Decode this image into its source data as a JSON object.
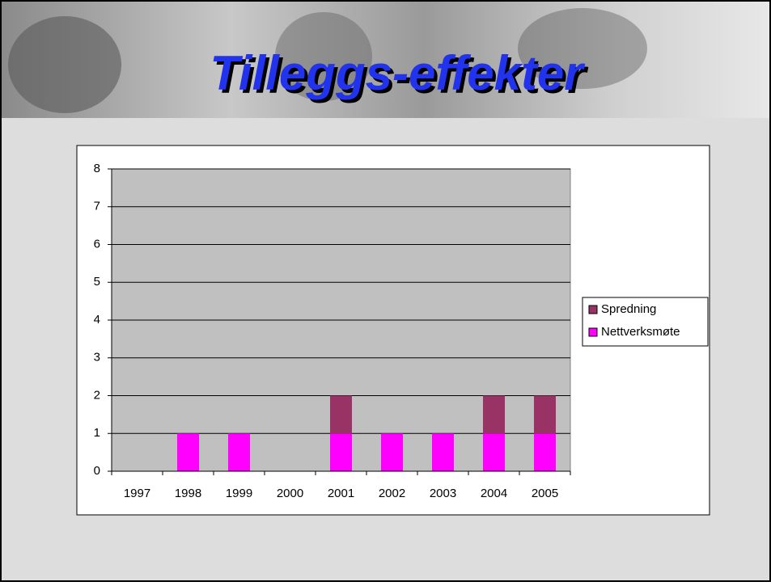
{
  "chart_data": {
    "type": "stacked_bar",
    "title": "Tilleggs-effekter",
    "categories": [
      "1997",
      "1998",
      "1999",
      "2000",
      "2001",
      "2002",
      "2003",
      "2004",
      "2005"
    ],
    "series": [
      {
        "name": "Nettverksmøte",
        "color": "#ff00ff",
        "values": [
          0,
          1,
          1,
          0,
          1,
          1,
          1,
          1,
          1
        ]
      },
      {
        "name": "Spredning",
        "color": "#993366",
        "values": [
          0,
          0,
          0,
          0,
          1,
          0,
          0,
          1,
          1
        ]
      }
    ],
    "ylim": [
      0,
      8
    ],
    "yticks": [
      0,
      1,
      2,
      3,
      4,
      5,
      6,
      7,
      8
    ],
    "grid": true,
    "legend": "right"
  }
}
